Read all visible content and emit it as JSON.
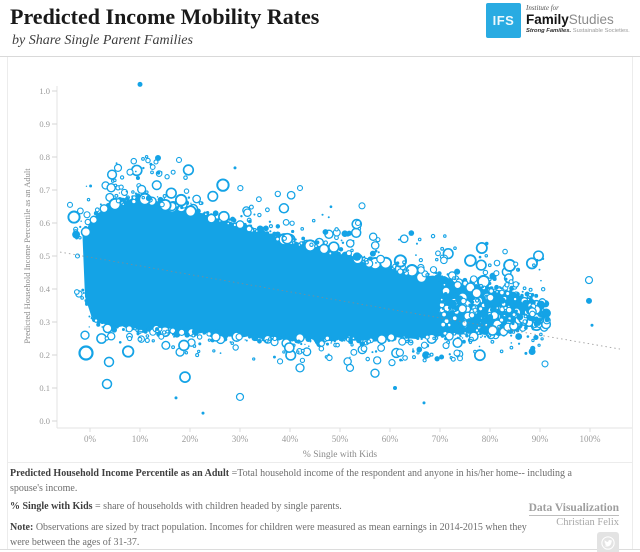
{
  "header": {
    "title": "Predicted Income Mobility Rates",
    "subtitle": "by Share Single Parent Families",
    "logo": {
      "abbr": "IFS",
      "line1": "Institute for",
      "name_bold": "Family",
      "name_light": "Studies",
      "tagline_bold": "Strong Families.",
      "tagline_light": "Sustainable Societies.",
      "color": "#29abe2"
    }
  },
  "chart_data": {
    "type": "scatter",
    "xlabel": "% Single with Kids",
    "ylabel": "Predicted Household Income Percentile as an Adult",
    "x_tick_labels": [
      "0%",
      "10%",
      "20%",
      "30%",
      "40%",
      "50%",
      "60%",
      "70%",
      "80%",
      "90%",
      "100%"
    ],
    "x_tick_values": [
      0,
      10,
      20,
      30,
      40,
      50,
      60,
      70,
      80,
      90,
      100
    ],
    "y_tick_labels": [
      "0.0",
      "0.1",
      "0.2",
      "0.3",
      "0.4",
      "0.5",
      "0.6",
      "0.7",
      "0.8",
      "0.9",
      "1.0"
    ],
    "y_tick_values": [
      0,
      0.1,
      0.2,
      0.3,
      0.4,
      0.5,
      0.6,
      0.7,
      0.8,
      0.9,
      1.0
    ],
    "xlim": [
      -6,
      108
    ],
    "ylim": [
      -0.07,
      1.07
    ],
    "grid": false,
    "legend": "none",
    "point_color": "#14a3e6",
    "axis_color": "#e3e3e3",
    "tick_text_color": "#9b9b9b",
    "axis_title_color": "#8a8a8a",
    "trendline": {
      "style": "dotted",
      "color": "#8a8a8a",
      "x1": -6,
      "y1": 0.512,
      "x2": 106,
      "y2": 0.218
    },
    "cloud": {
      "summary": "Dense mass of ~10k tract-level bubbles (sized by population) spanning 0%-90% single-parent share; predicted adult income percentile runs ~0.65 at low single-parent shares down to ~0.28-0.37 at high shares; open-circle fringe above and below the solid mass.",
      "seed": 11,
      "solid_range": [
        -1.5,
        89
      ],
      "top_boundary": [
        [
          -1.5,
          0.56
        ],
        [
          0,
          0.6
        ],
        [
          2,
          0.635
        ],
        [
          4,
          0.652
        ],
        [
          7,
          0.665
        ],
        [
          10,
          0.682
        ],
        [
          12,
          0.672
        ],
        [
          15,
          0.662
        ],
        [
          18,
          0.652
        ],
        [
          21,
          0.638
        ],
        [
          24,
          0.622
        ],
        [
          27,
          0.608
        ],
        [
          30,
          0.597
        ],
        [
          33,
          0.583
        ],
        [
          36,
          0.57
        ],
        [
          39,
          0.556
        ],
        [
          42,
          0.543
        ],
        [
          45,
          0.53
        ],
        [
          48,
          0.516
        ],
        [
          51,
          0.503
        ],
        [
          54,
          0.49
        ],
        [
          57,
          0.477
        ],
        [
          60,
          0.464
        ],
        [
          63,
          0.453
        ],
        [
          66,
          0.447
        ],
        [
          69,
          0.44
        ],
        [
          72,
          0.43
        ],
        [
          75,
          0.42
        ],
        [
          78,
          0.41
        ],
        [
          81,
          0.4
        ],
        [
          84,
          0.39
        ],
        [
          87,
          0.38
        ],
        [
          89,
          0.372
        ]
      ],
      "bottom_boundary": [
        [
          -1.5,
          0.4
        ],
        [
          0,
          0.315
        ],
        [
          2,
          0.295
        ],
        [
          4,
          0.285
        ],
        [
          7,
          0.28
        ],
        [
          10,
          0.277
        ],
        [
          12,
          0.275
        ],
        [
          15,
          0.272
        ],
        [
          18,
          0.268
        ],
        [
          21,
          0.265
        ],
        [
          24,
          0.262
        ],
        [
          27,
          0.258
        ],
        [
          30,
          0.255
        ],
        [
          33,
          0.252
        ],
        [
          36,
          0.25
        ],
        [
          39,
          0.248
        ],
        [
          42,
          0.246
        ],
        [
          45,
          0.245
        ],
        [
          48,
          0.244
        ],
        [
          51,
          0.244
        ],
        [
          54,
          0.245
        ],
        [
          57,
          0.246
        ],
        [
          60,
          0.248
        ],
        [
          63,
          0.25
        ],
        [
          66,
          0.252
        ],
        [
          69,
          0.255
        ],
        [
          72,
          0.258
        ],
        [
          75,
          0.262
        ],
        [
          78,
          0.265
        ],
        [
          81,
          0.268
        ],
        [
          84,
          0.272
        ],
        [
          87,
          0.278
        ],
        [
          89,
          0.285
        ]
      ],
      "counts": {
        "top_fringe": 340,
        "bottom_fringe": 240,
        "edge_dots": 460,
        "tail": 320
      }
    },
    "outliers": [
      {
        "x": 10,
        "y": 1.02,
        "r": 2.5,
        "open": false
      },
      {
        "x": 13.6,
        "y": 0.797,
        "r": 3,
        "open": false
      },
      {
        "x": 5.6,
        "y": 0.767,
        "r": 3.5,
        "open": true
      },
      {
        "x": 8,
        "y": 0.754,
        "r": 3,
        "open": true
      },
      {
        "x": 13.2,
        "y": 0.785,
        "r": 2,
        "open": true
      },
      {
        "x": 17.8,
        "y": 0.791,
        "r": 2.5,
        "open": true
      },
      {
        "x": 29,
        "y": 0.767,
        "r": 1.5,
        "open": false
      },
      {
        "x": 42,
        "y": 0.706,
        "r": 2.5,
        "open": true
      },
      {
        "x": 54.4,
        "y": 0.652,
        "r": 3,
        "open": true
      },
      {
        "x": 53.6,
        "y": 0.6,
        "r": 2.5,
        "open": true
      },
      {
        "x": -4,
        "y": 0.655,
        "r": 2.5,
        "open": true
      },
      {
        "x": -0.6,
        "y": 0.625,
        "r": 3,
        "open": true
      },
      {
        "x": -2.5,
        "y": 0.5,
        "r": 2,
        "open": true
      },
      {
        "x": -1,
        "y": 0.26,
        "r": 4,
        "open": true
      },
      {
        "x": -0.8,
        "y": 0.206,
        "r": 6.5,
        "open": true
      },
      {
        "x": 3.8,
        "y": 0.179,
        "r": 4.5,
        "open": true
      },
      {
        "x": 3.4,
        "y": 0.112,
        "r": 4.5,
        "open": true
      },
      {
        "x": 17.2,
        "y": 0.07,
        "r": 1.5,
        "open": false
      },
      {
        "x": 19,
        "y": 0.133,
        "r": 5,
        "open": true
      },
      {
        "x": 22.6,
        "y": 0.024,
        "r": 1.5,
        "open": false
      },
      {
        "x": 30,
        "y": 0.073,
        "r": 3.5,
        "open": true
      },
      {
        "x": 42,
        "y": 0.161,
        "r": 4,
        "open": true
      },
      {
        "x": 52,
        "y": 0.161,
        "r": 3.5,
        "open": true
      },
      {
        "x": 57,
        "y": 0.145,
        "r": 4,
        "open": true
      },
      {
        "x": 61,
        "y": 0.1,
        "r": 2,
        "open": false
      },
      {
        "x": 66.8,
        "y": 0.055,
        "r": 1.5,
        "open": false
      },
      {
        "x": 73.4,
        "y": 0.206,
        "r": 3,
        "open": true
      },
      {
        "x": 83.2,
        "y": 0.43,
        "r": 1.5,
        "open": false
      },
      {
        "x": 91,
        "y": 0.173,
        "r": 3,
        "open": true
      },
      {
        "x": 99.8,
        "y": 0.427,
        "r": 3.5,
        "open": true
      },
      {
        "x": 99.8,
        "y": 0.364,
        "r": 3,
        "open": false
      },
      {
        "x": 100.4,
        "y": 0.29,
        "r": 1.5,
        "open": false
      }
    ]
  },
  "footnotes": [
    {
      "bold": "Predicted Household Income Percentile as an Adult",
      "text": " =Total household income of the respondent and anyone in his/her home-- including a spouse's income."
    },
    {
      "bold": "% Single with Kids",
      "text": " = share of households with children headed by single parents."
    },
    {
      "bold": "Note:",
      "text": " Observations are sized by tract population. Incomes for children were measured as mean earnings in 2014-2015 when they were between the ages of 31-37."
    }
  ],
  "credit": {
    "label": "Data Visualization",
    "name": "Christian Felix",
    "icon": "twitter-bird-icon"
  }
}
